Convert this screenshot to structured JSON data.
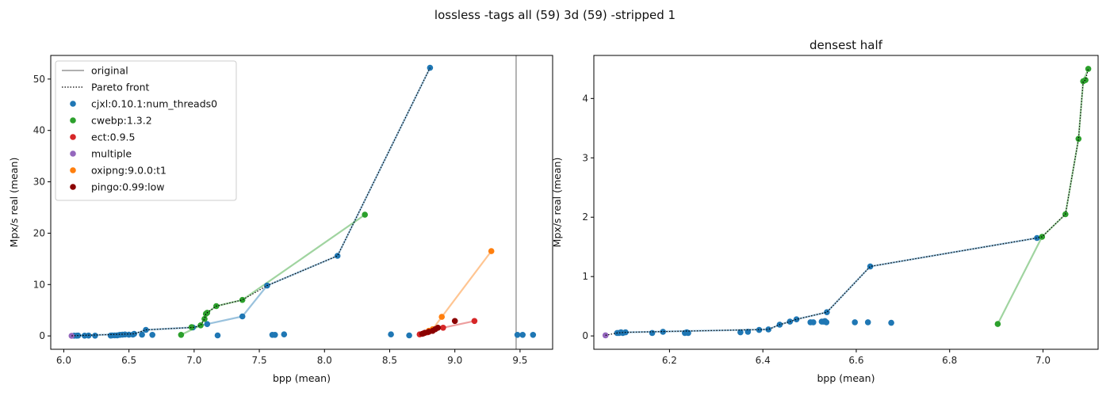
{
  "figure": {
    "suptitle": "lossless -tags all (59) 3d (59) -stripped 1"
  },
  "colors": {
    "cjxl": "#1f77b4",
    "cwebp": "#2ca02c",
    "ect": "#d62728",
    "multiple": "#9467bd",
    "oxipng": "#ff7f0e",
    "pingo": "#8b0000",
    "original": "#808080",
    "pareto": "#000000"
  },
  "chart_data": [
    {
      "type": "scatter",
      "title": "",
      "xlabel": "bpp (mean)",
      "ylabel": "Mpx/s real (mean)",
      "xlim": [
        5.9,
        9.75
      ],
      "ylim": [
        -2.6,
        54.6
      ],
      "xticks": [
        "6.0",
        "6.5",
        "7.0",
        "7.5",
        "8.0",
        "8.5",
        "9.0",
        "9.5"
      ],
      "xtick_values": [
        6.0,
        6.5,
        7.0,
        7.5,
        8.0,
        8.5,
        9.0,
        9.5
      ],
      "yticks": [
        "0",
        "10",
        "20",
        "30",
        "40",
        "50"
      ],
      "ytick_values": [
        0,
        10,
        20,
        30,
        40,
        50
      ],
      "grid": false,
      "legend_position": "upper-left",
      "original_x": 9.47,
      "legend": [
        {
          "kind": "line",
          "label": "original",
          "color": "original"
        },
        {
          "kind": "dotted",
          "label": "Pareto front",
          "color": "pareto"
        },
        {
          "kind": "dot",
          "label": "cjxl:0.10.1:num_threads0",
          "color": "cjxl"
        },
        {
          "kind": "dot",
          "label": "cwebp:1.3.2",
          "color": "cwebp"
        },
        {
          "kind": "dot",
          "label": "ect:0.9.5",
          "color": "ect"
        },
        {
          "kind": "dot",
          "label": "multiple",
          "color": "multiple"
        },
        {
          "kind": "dot",
          "label": "oxipng:9.0.0:t1",
          "color": "oxipng"
        },
        {
          "kind": "dot",
          "label": "pingo:0.99:low",
          "color": "pingo"
        }
      ],
      "series": [
        {
          "name": "cjxl:0.10.1:num_threads0",
          "color": "cjxl",
          "points": [
            [
              6.08,
              0.05
            ],
            [
              6.1,
              0.05
            ],
            [
              6.11,
              0.06
            ],
            [
              6.16,
              0.05
            ],
            [
              6.19,
              0.07
            ],
            [
              6.24,
              0.05
            ],
            [
              6.36,
              0.06
            ],
            [
              6.37,
              0.1
            ],
            [
              6.39,
              0.1
            ],
            [
              6.41,
              0.12
            ],
            [
              6.43,
              0.2
            ],
            [
              6.45,
              0.24
            ],
            [
              6.47,
              0.28
            ],
            [
              6.5,
              0.23
            ],
            [
              6.53,
              0.25
            ],
            [
              6.54,
              0.4
            ],
            [
              6.6,
              0.23
            ],
            [
              6.63,
              1.17
            ],
            [
              6.68,
              0.21
            ],
            [
              6.99,
              1.65
            ],
            [
              7.1,
              2.3
            ],
            [
              7.18,
              0.1
            ],
            [
              7.37,
              3.8
            ],
            [
              7.56,
              9.8
            ],
            [
              7.6,
              0.2
            ],
            [
              7.62,
              0.2
            ],
            [
              7.69,
              0.3
            ],
            [
              8.1,
              15.6
            ],
            [
              8.51,
              0.3
            ],
            [
              8.65,
              0.1
            ],
            [
              8.81,
              52.2
            ],
            [
              9.48,
              0.2
            ],
            [
              9.52,
              0.2
            ],
            [
              9.6,
              0.2
            ]
          ],
          "trend": [
            [
              6.08,
              0.05
            ],
            [
              6.54,
              0.4
            ],
            [
              6.63,
              1.17
            ],
            [
              6.99,
              1.65
            ],
            [
              7.1,
              2.3
            ],
            [
              7.37,
              3.8
            ],
            [
              7.56,
              9.8
            ],
            [
              8.1,
              15.6
            ],
            [
              8.81,
              52.2
            ]
          ]
        },
        {
          "name": "cwebp:1.3.2",
          "color": "cwebp",
          "points": [
            [
              6.9,
              0.2
            ],
            [
              6.98,
              1.7
            ],
            [
              7.05,
              2.05
            ],
            [
              7.08,
              3.3
            ],
            [
              7.09,
              4.3
            ],
            [
              7.1,
              4.5
            ],
            [
              7.17,
              5.8
            ],
            [
              7.37,
              7.0
            ],
            [
              8.31,
              23.6
            ]
          ],
          "trend": [
            [
              6.9,
              0.2
            ],
            [
              7.05,
              2.05
            ],
            [
              7.1,
              4.5
            ],
            [
              7.17,
              5.8
            ],
            [
              7.37,
              7.0
            ],
            [
              8.31,
              23.6
            ]
          ]
        },
        {
          "name": "ect:0.9.5",
          "color": "ect",
          "points": [
            [
              8.73,
              0.3
            ],
            [
              8.76,
              0.5
            ],
            [
              8.79,
              0.7
            ],
            [
              8.83,
              1.0
            ],
            [
              8.91,
              1.6
            ],
            [
              9.15,
              2.9
            ]
          ],
          "trend": [
            [
              8.73,
              0.3
            ],
            [
              8.83,
              1.0
            ],
            [
              8.91,
              1.6
            ],
            [
              9.15,
              2.9
            ]
          ]
        },
        {
          "name": "multiple",
          "color": "multiple",
          "points": [
            [
              6.06,
              0.02
            ]
          ],
          "trend": []
        },
        {
          "name": "oxipng:9.0.0:t1",
          "color": "oxipng",
          "points": [
            [
              8.8,
              1.0
            ],
            [
              8.83,
              1.3
            ],
            [
              8.9,
              3.7
            ],
            [
              9.28,
              16.5
            ]
          ],
          "trend": [
            [
              8.8,
              1.0
            ],
            [
              8.83,
              1.3
            ],
            [
              8.9,
              3.7
            ],
            [
              9.28,
              16.5
            ]
          ]
        },
        {
          "name": "pingo:0.99:low",
          "color": "pingo",
          "points": [
            [
              8.75,
              0.4
            ],
            [
              8.77,
              0.6
            ],
            [
              8.8,
              0.8
            ],
            [
              8.83,
              1.0
            ],
            [
              8.85,
              1.3
            ],
            [
              8.87,
              1.6
            ],
            [
              9.0,
              2.9
            ]
          ],
          "trend": []
        }
      ],
      "pareto": [
        [
          6.06,
          0.02
        ],
        [
          6.08,
          0.05
        ],
        [
          6.54,
          0.4
        ],
        [
          6.63,
          1.17
        ],
        [
          6.99,
          1.65
        ],
        [
          7.0,
          1.67
        ],
        [
          7.05,
          2.05
        ],
        [
          7.08,
          3.3
        ],
        [
          7.09,
          4.3
        ],
        [
          7.1,
          4.5
        ],
        [
          7.17,
          5.8
        ],
        [
          7.37,
          7.0
        ],
        [
          7.56,
          9.8
        ],
        [
          8.1,
          15.6
        ],
        [
          8.81,
          52.2
        ]
      ]
    },
    {
      "type": "scatter",
      "title": "densest half",
      "xlabel": "bpp (mean)",
      "ylabel": "Mpx/s real (mean)",
      "xlim": [
        6.038,
        7.118
      ],
      "ylim": [
        -0.225,
        4.725
      ],
      "xticks": [
        "6.2",
        "6.4",
        "6.6",
        "6.8",
        "7.0"
      ],
      "xtick_values": [
        6.2,
        6.4,
        6.6,
        6.8,
        7.0
      ],
      "yticks": [
        "0",
        "1",
        "2",
        "3",
        "4"
      ],
      "ytick_values": [
        0,
        1,
        2,
        3,
        4
      ],
      "grid": false,
      "series": [
        {
          "name": "cjxl:0.10.1:num_threads0",
          "color": "cjxl",
          "points": [
            [
              6.088,
              0.05
            ],
            [
              6.092,
              0.05
            ],
            [
              6.096,
              0.06
            ],
            [
              6.1,
              0.05
            ],
            [
              6.106,
              0.06
            ],
            [
              6.163,
              0.05
            ],
            [
              6.186,
              0.07
            ],
            [
              6.233,
              0.05
            ],
            [
              6.237,
              0.06
            ],
            [
              6.24,
              0.05
            ],
            [
              6.352,
              0.06
            ],
            [
              6.368,
              0.07
            ],
            [
              6.392,
              0.1
            ],
            [
              6.412,
              0.11
            ],
            [
              6.436,
              0.19
            ],
            [
              6.458,
              0.24
            ],
            [
              6.472,
              0.28
            ],
            [
              6.502,
              0.23
            ],
            [
              6.508,
              0.23
            ],
            [
              6.526,
              0.24
            ],
            [
              6.53,
              0.24
            ],
            [
              6.533,
              0.25
            ],
            [
              6.536,
              0.23
            ],
            [
              6.537,
              0.4
            ],
            [
              6.597,
              0.23
            ],
            [
              6.625,
              0.23
            ],
            [
              6.63,
              1.17
            ],
            [
              6.675,
              0.22
            ],
            [
              6.987,
              1.65
            ]
          ],
          "trend": [
            [
              6.088,
              0.05
            ],
            [
              6.106,
              0.06
            ],
            [
              6.412,
              0.11
            ],
            [
              6.436,
              0.19
            ],
            [
              6.458,
              0.24
            ],
            [
              6.472,
              0.28
            ],
            [
              6.537,
              0.4
            ],
            [
              6.63,
              1.17
            ],
            [
              6.987,
              1.65
            ]
          ]
        },
        {
          "name": "cwebp:1.3.2",
          "color": "cwebp",
          "points": [
            [
              6.903,
              0.2
            ],
            [
              6.998,
              1.67
            ],
            [
              7.048,
              2.05
            ],
            [
              7.076,
              3.32
            ],
            [
              7.086,
              4.29
            ],
            [
              7.091,
              4.31
            ],
            [
              7.097,
              4.5
            ]
          ],
          "trend": [
            [
              6.903,
              0.2
            ],
            [
              6.998,
              1.67
            ],
            [
              7.048,
              2.05
            ],
            [
              7.076,
              3.32
            ],
            [
              7.086,
              4.29
            ],
            [
              7.097,
              4.5
            ]
          ]
        },
        {
          "name": "multiple",
          "color": "multiple",
          "points": [
            [
              6.063,
              0.01
            ]
          ],
          "trend": []
        }
      ],
      "pareto": [
        [
          6.063,
          0.01
        ],
        [
          6.088,
          0.05
        ],
        [
          6.106,
          0.06
        ],
        [
          6.412,
          0.11
        ],
        [
          6.436,
          0.19
        ],
        [
          6.458,
          0.24
        ],
        [
          6.472,
          0.28
        ],
        [
          6.537,
          0.4
        ],
        [
          6.63,
          1.17
        ],
        [
          6.987,
          1.65
        ],
        [
          6.998,
          1.67
        ],
        [
          7.048,
          2.05
        ],
        [
          7.076,
          3.32
        ],
        [
          7.086,
          4.29
        ],
        [
          7.091,
          4.31
        ],
        [
          7.097,
          4.5
        ]
      ]
    }
  ]
}
